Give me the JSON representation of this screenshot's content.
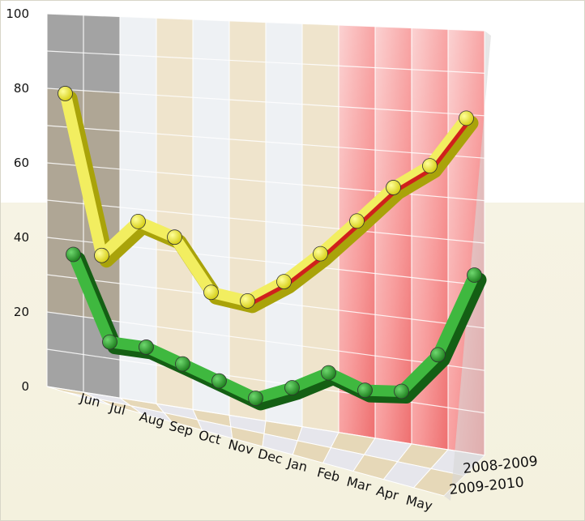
{
  "chart_data": {
    "type": "line",
    "style": "3d-ribbon",
    "categories": [
      "Jun",
      "Jul",
      "Aug",
      "Sep",
      "Oct",
      "Nov",
      "Dec",
      "Jan",
      "Feb",
      "Mar",
      "Apr",
      "May"
    ],
    "series": [
      {
        "name": "2008-2009",
        "color": "#e8e43a",
        "values": [
          72,
          30,
          40,
          37,
          24,
          23,
          29,
          37,
          46,
          55,
          61,
          73
        ]
      },
      {
        "name": "2009-2010",
        "color": "#2e9e2e",
        "values": [
          36,
          14,
          14,
          11,
          8,
          5,
          9,
          14,
          11,
          12,
          22,
          42
        ]
      }
    ],
    "ylim": [
      0,
      100
    ],
    "yticks": [
      0,
      20,
      40,
      60,
      80,
      100
    ],
    "grid": true,
    "colors": {
      "wall_shaded": "#a3a3a3",
      "wall_white": "#eef1f4",
      "wall_beige": "#efe4cc",
      "wall_red": "#f8b0b0",
      "floor_light": "#e6e6ec",
      "floor_beige": "#e6d8b8",
      "line_red": "#d0201c"
    }
  }
}
